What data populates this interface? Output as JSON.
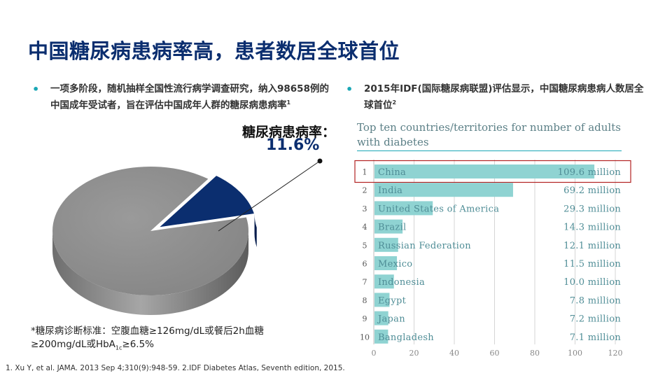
{
  "slide": {
    "title": "中国糖尿病患病率高，患者数居全球首位",
    "bullet1": "一项多阶段，随机抽样全国性流行病学调查研究，纳入98658例的中国成年受试者，旨在评估中国成年人群的糖尿病患病率",
    "bullet1_ref": "1",
    "bullet2": "2015年IDF(国际糖尿病联盟)评估显示，中国糖尿病患病人数居全球首位",
    "bullet2_ref": "2",
    "callout_label": "糖尿病患病率：",
    "callout_value": "11.6%",
    "note_line1": "*糖尿病诊断标准：空腹血糖≥126mg/dL或餐后2h血糖",
    "note_line2_a": "≥200mg/dL或HbA",
    "note_line2_sub": "1c",
    "note_line2_b": "≥6.5%",
    "refs": "1. Xu Y, et al. JAMA. 2013 Sep 4;310(9):948-59.   2.IDF Diabetes Atlas, Seventh edition, 2015."
  },
  "colors": {
    "title": "#0b2e6f",
    "bar": "#8fd3d2",
    "highlight_box": "#b22222",
    "pie_gray": "#8c8c8c",
    "pie_navy": "#0b2e6f",
    "accent": "#1aa7b5"
  },
  "chart_data": [
    {
      "type": "pie",
      "values": [
        11.6,
        88.4
      ],
      "highlight_index": 0
    },
    {
      "type": "bar",
      "orientation": "horizontal",
      "title": "Top ten countries/territories for number of adults with diabetes",
      "ranks": [
        "1",
        "2",
        "3",
        "4",
        "5",
        "6",
        "7",
        "8",
        "9",
        "10"
      ],
      "categories": [
        "China",
        "India",
        "United States of America",
        "Brazil",
        "Russian Federation",
        "Mexico",
        "Indonesia",
        "Egypt",
        "Japan",
        "Bangladesh"
      ],
      "values": [
        109.6,
        69.2,
        29.3,
        14.3,
        12.1,
        11.5,
        10.0,
        7.8,
        7.2,
        7.1
      ],
      "value_labels": [
        "109.6 million",
        "69.2 million",
        "29.3 million",
        "14.3 million",
        "12.1 million",
        "11.5 million",
        "10.0 million",
        "7.8 million",
        "7.2 million",
        "7.1 million"
      ],
      "x_ticks": [
        0,
        20,
        40,
        60,
        80,
        100,
        120
      ],
      "xlim": [
        0,
        120
      ],
      "grid": true,
      "highlight_index": 0
    }
  ]
}
